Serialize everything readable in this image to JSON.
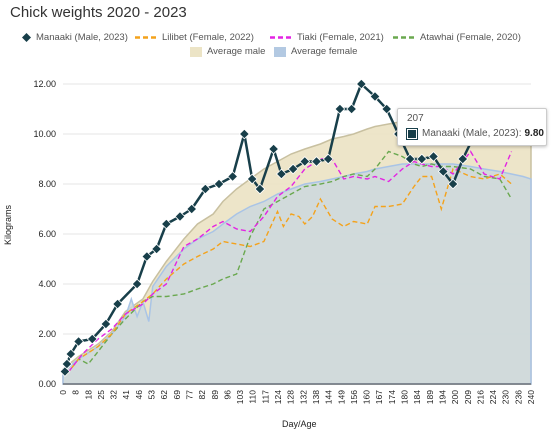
{
  "title": "Chick weights 2020 - 2023",
  "colors": {
    "manaaki": "#183f4a",
    "lilibet": "#f4a21b",
    "tiaki": "#e324e3",
    "atawhai": "#6aa84f",
    "avg_male_fill": "#ece4c6",
    "avg_male_line": "#c8c0a0",
    "avg_female_fill": "#cbd8de",
    "avg_female_line": "#a9c4e6"
  },
  "legend": {
    "row1": [
      {
        "label": "Manaaki (Male, 2023)",
        "color": "#183f4a",
        "style": "diamond"
      },
      {
        "label": "Lilibet (Female, 2022)",
        "color": "#f4a21b",
        "style": "dash"
      },
      {
        "label": "Tiaki (Female, 2021)",
        "color": "#e324e3",
        "style": "dash"
      },
      {
        "label": "Atawhai (Female, 2020)",
        "color": "#6aa84f",
        "style": "dash"
      }
    ],
    "row2": [
      {
        "label": "Average male",
        "color": "#ece4c6",
        "style": "box"
      },
      {
        "label": "Average female",
        "color": "#b3c9e2",
        "style": "box"
      }
    ]
  },
  "tooltip": {
    "x": "207",
    "series": "Manaaki (Male, 2023):",
    "value": "9.80"
  },
  "chart_data": {
    "type": "line",
    "xlabel": "Day/Age",
    "ylabel": "Kilograms",
    "xlim": [
      0,
      240
    ],
    "ylim": [
      0,
      12
    ],
    "yticks": [
      "0.00",
      "2.00",
      "4.00",
      "6.00",
      "8.00",
      "10.00",
      "12.00"
    ],
    "xticks": [
      "0",
      "8",
      "18",
      "25",
      "32",
      "41",
      "46",
      "53",
      "62",
      "69",
      "77",
      "82",
      "89",
      "96",
      "103",
      "110",
      "117",
      "124",
      "128",
      "132",
      "138",
      "144",
      "149",
      "156",
      "160",
      "167",
      "174",
      "180",
      "184",
      "189",
      "194",
      "200",
      "209",
      "216",
      "224",
      "230",
      "236",
      "240"
    ],
    "grid": true,
    "legend_position": "top",
    "series": [
      {
        "name": "Manaaki (Male, 2023)",
        "color": "#183f4a",
        "x": [
          1,
          2,
          4,
          8,
          15,
          22,
          28,
          38,
          43,
          48,
          53,
          60,
          66,
          73,
          80,
          87,
          93,
          97,
          101,
          108,
          112,
          118,
          124,
          130,
          136,
          142,
          148,
          153,
          160,
          166,
          172,
          178,
          184,
          190,
          195,
          200,
          205,
          210
        ],
        "y": [
          0.5,
          0.8,
          1.2,
          1.7,
          1.8,
          2.4,
          3.2,
          4.0,
          5.1,
          5.4,
          6.4,
          6.7,
          7.0,
          7.8,
          8.0,
          8.3,
          10.0,
          8.2,
          7.8,
          9.4,
          8.4,
          8.6,
          8.9,
          8.9,
          9.0,
          11.0,
          11.0,
          12.0,
          11.5,
          11.0,
          10.0,
          9.0,
          9.0,
          9.1,
          8.5,
          8.0,
          9.0,
          9.8
        ]
      },
      {
        "name": "Lilibet (Female, 2022)",
        "color": "#f4a21b",
        "x": [
          2,
          8,
          18,
          25,
          32,
          41,
          46,
          53,
          62,
          69,
          77,
          82,
          89,
          96,
          103,
          110,
          113,
          117,
          121,
          124,
          128,
          132,
          138,
          144,
          149,
          156,
          160,
          167,
          174,
          180,
          184,
          189,
          194,
          200,
          209,
          216,
          224,
          230
        ],
        "y": [
          0.4,
          1.0,
          1.5,
          2.0,
          2.8,
          3.3,
          3.6,
          4.2,
          4.8,
          5.1,
          5.4,
          5.7,
          5.6,
          5.5,
          5.7,
          6.9,
          6.3,
          6.8,
          6.7,
          6.4,
          6.7,
          7.4,
          6.6,
          6.3,
          6.5,
          6.4,
          7.1,
          7.1,
          7.2,
          7.9,
          8.3,
          8.3,
          7.0,
          8.6,
          8.3,
          8.2,
          8.4,
          8.0
        ]
      },
      {
        "name": "Tiaki (Female, 2021)",
        "color": "#e324e3",
        "x": [
          3,
          10,
          18,
          25,
          32,
          41,
          46,
          53,
          62,
          69,
          77,
          82,
          89,
          96,
          103,
          110,
          117,
          124,
          132,
          138,
          144,
          149,
          156,
          160,
          167,
          174,
          180,
          184,
          189,
          194,
          200,
          209,
          216,
          224,
          230
        ],
        "y": [
          0.5,
          1.2,
          1.8,
          2.2,
          2.8,
          3.2,
          3.6,
          4.0,
          5.5,
          5.8,
          6.3,
          6.5,
          6.2,
          6.1,
          6.7,
          7.5,
          7.9,
          8.6,
          9.0,
          9.0,
          8.2,
          8.3,
          8.2,
          8.3,
          8.1,
          8.6,
          8.9,
          8.8,
          8.7,
          8.7,
          8.4,
          9.3,
          8.4,
          8.2,
          9.3
        ]
      },
      {
        "name": "Atawhai (Female, 2020)",
        "color": "#6aa84f",
        "x": [
          2,
          8,
          13,
          18,
          25,
          32,
          41,
          46,
          53,
          62,
          69,
          77,
          82,
          89,
          96,
          100,
          103,
          110,
          117,
          124,
          132,
          138,
          144,
          149,
          156,
          160,
          167,
          174,
          180,
          184,
          189,
          194,
          200,
          209,
          216,
          224,
          230
        ],
        "y": [
          0.4,
          1.0,
          0.8,
          1.3,
          2.0,
          2.6,
          3.3,
          3.5,
          3.5,
          3.6,
          3.8,
          4.0,
          4.2,
          4.4,
          5.9,
          6.5,
          7.0,
          7.3,
          7.6,
          7.9,
          8.0,
          8.1,
          8.3,
          8.4,
          8.3,
          8.6,
          9.3,
          9.1,
          8.8,
          8.7,
          8.8,
          8.7,
          8.7,
          8.6,
          8.3,
          8.2,
          7.4
        ]
      },
      {
        "name": "Average male",
        "color": "#ece4c6",
        "x": [
          0,
          8,
          18,
          25,
          32,
          41,
          46,
          53,
          62,
          69,
          77,
          82,
          89,
          96,
          103,
          110,
          117,
          124,
          132,
          138,
          144,
          149,
          156,
          160,
          167,
          174,
          180,
          184,
          189,
          194,
          200,
          209,
          216,
          224,
          230,
          236,
          240
        ],
        "y": [
          0.6,
          1.1,
          1.6,
          2.1,
          2.9,
          3.4,
          4.1,
          4.9,
          5.8,
          6.4,
          6.8,
          7.3,
          7.8,
          8.2,
          8.6,
          8.9,
          9.2,
          9.4,
          9.6,
          9.8,
          9.9,
          10.0,
          10.2,
          10.3,
          10.4,
          10.5,
          10.6,
          10.6,
          10.6,
          10.6,
          10.5,
          10.3,
          10.2,
          10.1,
          10.0,
          9.9,
          9.7
        ]
      },
      {
        "name": "Average female",
        "color": "#a9c4e6",
        "x": [
          0,
          8,
          18,
          25,
          32,
          35,
          38,
          41,
          44,
          46,
          53,
          62,
          69,
          77,
          82,
          89,
          96,
          103,
          110,
          117,
          124,
          132,
          138,
          144,
          149,
          156,
          160,
          167,
          174,
          180,
          184,
          189,
          194,
          200,
          209,
          216,
          224,
          230,
          236,
          240
        ],
        "y": [
          0.5,
          1.0,
          1.5,
          2.0,
          2.7,
          3.4,
          2.7,
          3.3,
          2.5,
          3.9,
          4.7,
          5.4,
          5.8,
          6.1,
          6.4,
          6.8,
          7.1,
          7.3,
          7.6,
          7.8,
          8.0,
          8.1,
          8.2,
          8.3,
          8.4,
          8.5,
          8.6,
          8.7,
          8.8,
          8.8,
          8.8,
          8.8,
          8.8,
          8.8,
          8.7,
          8.6,
          8.5,
          8.4,
          8.3,
          8.2
        ]
      }
    ]
  }
}
